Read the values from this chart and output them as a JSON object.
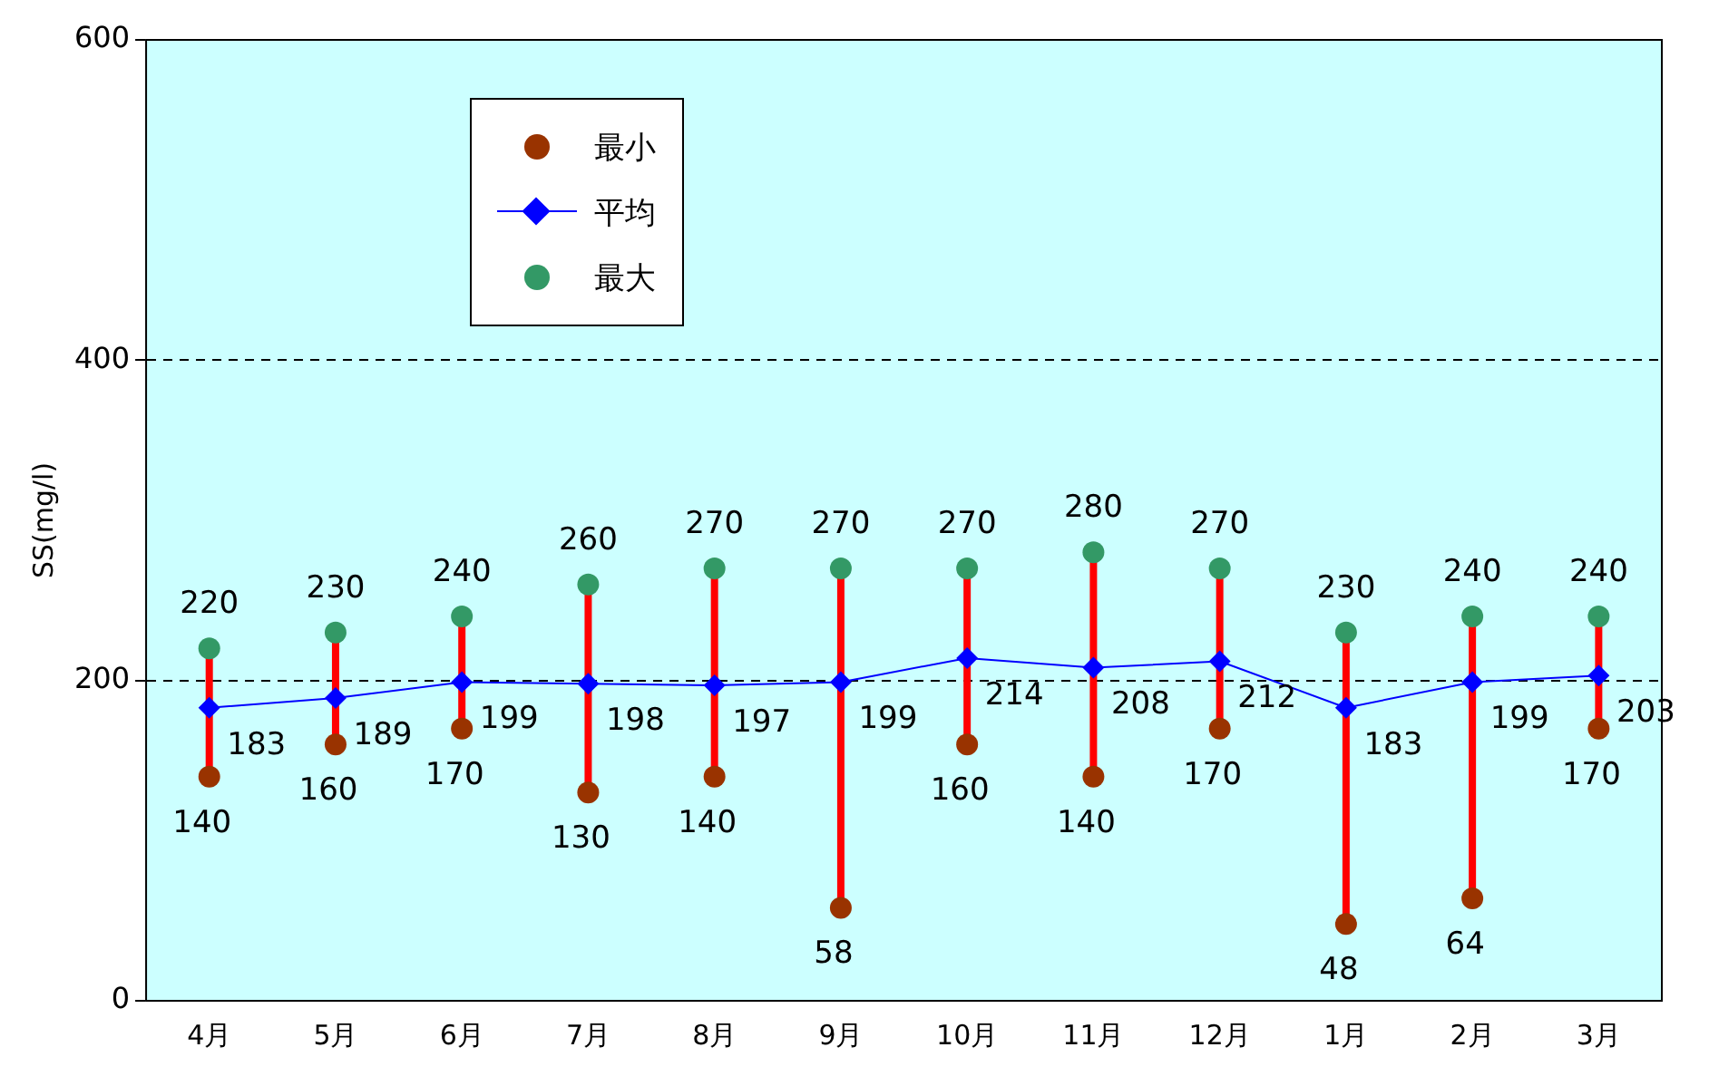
{
  "chart_data": {
    "type": "line",
    "ylabel": "SS(mg/l)",
    "categories": [
      "4月",
      "5月",
      "6月",
      "7月",
      "8月",
      "9月",
      "10月",
      "11月",
      "12月",
      "1月",
      "2月",
      "3月"
    ],
    "series": [
      {
        "name": "最小",
        "type": "scatter",
        "color": "#993300",
        "marker": "circle",
        "values": [
          140,
          160,
          170,
          130,
          140,
          58,
          160,
          140,
          170,
          48,
          64,
          170
        ]
      },
      {
        "name": "平均",
        "color": "#0000ff",
        "marker": "diamond",
        "values": [
          183,
          189,
          199,
          198,
          197,
          199,
          214,
          208,
          212,
          183,
          199,
          203
        ]
      },
      {
        "name": "最大",
        "type": "scatter",
        "color": "#339966",
        "marker": "circle",
        "values": [
          220,
          230,
          240,
          260,
          270,
          270,
          270,
          280,
          270,
          230,
          240,
          240
        ]
      }
    ],
    "ylim": [
      0,
      600
    ],
    "yticks": [
      0,
      200,
      400,
      600
    ],
    "grid": "y",
    "line_style": "solid",
    "legend": "top left",
    "data_labels": true
  }
}
